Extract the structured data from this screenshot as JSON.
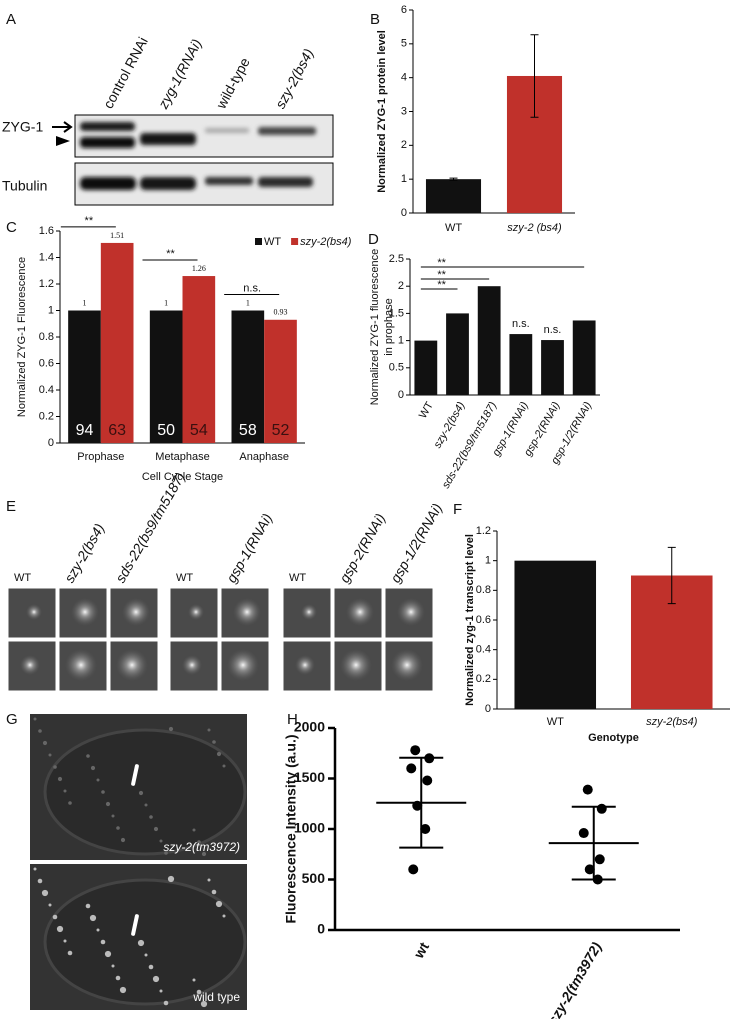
{
  "panel_labels": [
    "A",
    "B",
    "C",
    "D",
    "E",
    "F",
    "G",
    "H"
  ],
  "blot": {
    "lanes": [
      "control RNAi",
      "zyg-1(RNAi)",
      "wild-type",
      "szy-2(bs4)"
    ],
    "rows": [
      "ZYG-1",
      "Tubulin"
    ]
  },
  "micrographs_e": {
    "groups": [
      [
        "WT",
        "szy-2(bs4)",
        "sds-22(bs9/tm5187)"
      ],
      [
        "WT",
        "gsp-1(RNAi)"
      ],
      [
        "WT",
        "gsp-2(RNAi)",
        "gsp-1/2(RNAi)"
      ]
    ]
  },
  "micrographs_g": {
    "labels": [
      "szy-2(tm3972)",
      "wild type"
    ]
  },
  "chart_data": [
    {
      "type": "bar",
      "ylabel": "Normalized ZYG-1 protein level",
      "categories": [
        "WT",
        "szy-2 (bs4)"
      ],
      "values": [
        1,
        4.05
      ],
      "errors": [
        0.03,
        1.22
      ],
      "colors": [
        "#111111",
        "#c0312b"
      ],
      "ylim": [
        0,
        6
      ],
      "yticks": [
        0,
        1,
        2,
        3,
        4,
        5,
        6
      ]
    },
    {
      "type": "bar",
      "ylabel": "Normalized ZYG-1 Fluorescence",
      "xlabel": "Cell Cycle Stage",
      "categories": [
        "Prophase",
        "Metaphase",
        "Anaphase"
      ],
      "series": [
        {
          "name": "WT",
          "color": "#111111",
          "values": [
            1,
            1,
            1
          ],
          "counts": [
            94,
            50,
            58
          ]
        },
        {
          "name": "szy-2(bs4)",
          "color": "#c0312b",
          "values": [
            1.51,
            1.26,
            0.93
          ],
          "counts": [
            63,
            54,
            52
          ]
        }
      ],
      "ylim": [
        0,
        1.6
      ],
      "yticks": [
        0,
        0.2,
        0.4,
        0.6,
        0.8,
        1,
        1.2,
        1.4,
        1.6
      ],
      "annotations": [
        "**",
        "**",
        "n.s."
      ],
      "legend": "top-right"
    },
    {
      "type": "bar",
      "ylabel": [
        "Normalized ZYG-1 fluorescence",
        "in prophase"
      ],
      "categories": [
        "WT",
        "szy-2(bs4)",
        "sds-22(bs9/tm5187)",
        "gsp-1(RNAi)",
        "gsp-2(RNAi)",
        "gsp-1/2(RNAi)"
      ],
      "values": [
        1,
        1.5,
        2,
        1.12,
        1.01,
        1.37
      ],
      "color": "#111111",
      "ylim": [
        0,
        2.5
      ],
      "yticks": [
        0,
        0.5,
        1,
        1.5,
        2,
        2.5
      ],
      "annotations": [
        "**",
        "**",
        "**",
        "n.s.",
        "n.s."
      ]
    },
    {
      "type": "bar",
      "ylabel": "Normalized zyg-1 transcript level",
      "xlabel": "Genotype",
      "categories": [
        "WT",
        "szy-2(bs4)"
      ],
      "values": [
        1,
        0.9
      ],
      "errors": [
        null,
        0.19
      ],
      "colors": [
        "#111111",
        "#c0312b"
      ],
      "ylim": [
        0,
        1.2
      ],
      "yticks": [
        0,
        0.2,
        0.4,
        0.6,
        0.8,
        1,
        1.2
      ]
    },
    {
      "type": "dot",
      "ylabel": "Fluorescence Intensity (a.u.)",
      "categories": [
        "wt",
        "szy-2(tm3972)"
      ],
      "points": [
        [
          1780,
          1700,
          1600,
          1480,
          1230,
          1000,
          600
        ],
        [
          1390,
          1200,
          960,
          700,
          600,
          500
        ]
      ],
      "means": [
        1260,
        860
      ],
      "sd": [
        445,
        360
      ],
      "ylim": [
        0,
        2000
      ],
      "yticks": [
        0,
        500,
        1000,
        1500,
        2000
      ]
    }
  ]
}
